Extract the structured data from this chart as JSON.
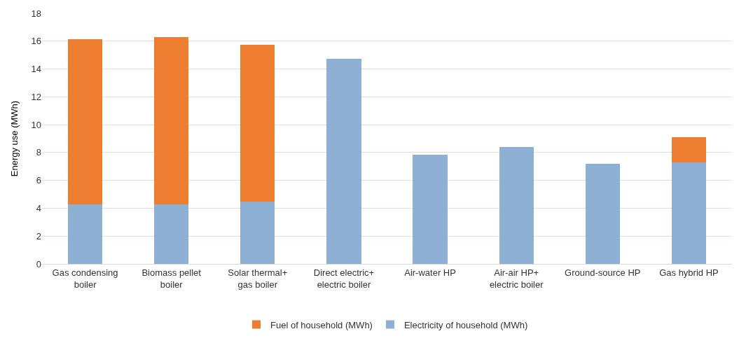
{
  "chart_data": {
    "type": "bar",
    "stacked": true,
    "ylabel": "Energy use (MWh)",
    "categories": [
      "Gas condensing boiler",
      "Biomass pellet boiler",
      "Solar thermal+ gas boiler",
      "Direct electric+ electric boiler",
      "Air-water HP",
      "Air-air HP+ electric boiler",
      "Ground-source HP",
      "Gas hybrid HP"
    ],
    "series": [
      {
        "name": "Electricity of household (MWh)",
        "color": "#8eb0d5",
        "values": [
          4.25,
          4.25,
          4.45,
          14.75,
          7.85,
          8.4,
          7.2,
          7.3
        ]
      },
      {
        "name": "Fuel of household (MWh)",
        "color": "#ed7d31",
        "values": [
          11.9,
          12.05,
          11.3,
          null,
          null,
          null,
          null,
          1.8
        ]
      }
    ],
    "ylim": [
      0,
      18
    ],
    "yticks": [
      0,
      2,
      4,
      6,
      8,
      10,
      12,
      14,
      16,
      18
    ],
    "grid": "y",
    "legend": "bottom"
  }
}
